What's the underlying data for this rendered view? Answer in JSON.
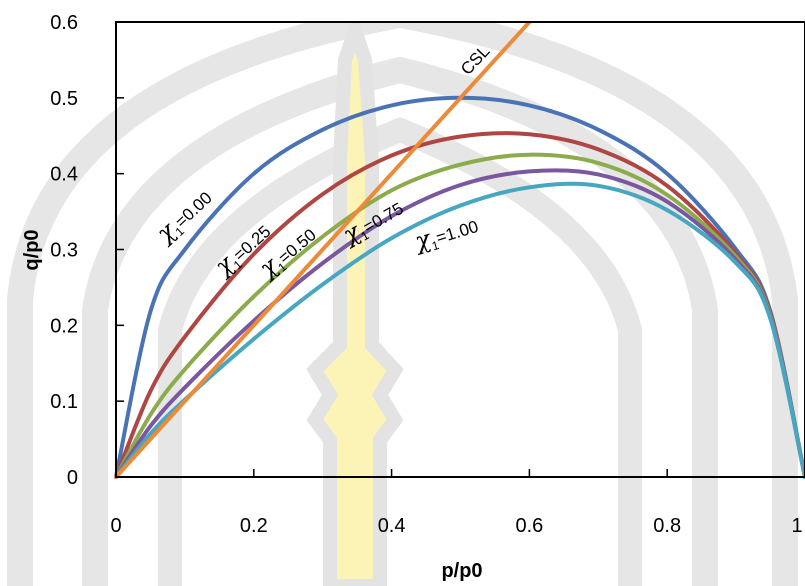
{
  "chart_data": {
    "type": "line",
    "title": "",
    "xlabel": "p/p0",
    "ylabel": "q/p0",
    "xlim": [
      0,
      1
    ],
    "ylim": [
      0,
      0.6
    ],
    "xticks": [
      0,
      0.2,
      0.4,
      0.6,
      0.8,
      1
    ],
    "xtick_labels": [
      "0",
      "0.2",
      "0.4",
      "0.6",
      "0.8",
      "1"
    ],
    "yticks": [
      0,
      0.1,
      0.2,
      0.3,
      0.4,
      0.5,
      0.6
    ],
    "ytick_labels": [
      "0",
      "0.1",
      "0.2",
      "0.3",
      "0.4",
      "0.5",
      "0.6"
    ],
    "grid": false,
    "legend": "none",
    "series": [
      {
        "label": "χ1=0.00",
        "chi": "χ",
        "subscript": "1",
        "value_text": "=0.00",
        "color": "#4a73b5",
        "x": [
          0,
          0.05,
          0.1,
          0.2,
          0.3,
          0.4,
          0.5,
          0.6,
          0.7,
          0.8,
          0.9,
          0.95,
          1
        ],
        "y": [
          0,
          0.218,
          0.3,
          0.4,
          0.458,
          0.49,
          0.5,
          0.49,
          0.458,
          0.4,
          0.3,
          0.218,
          0
        ]
      },
      {
        "label": "χ1=0.25",
        "chi": "χ",
        "subscript": "1",
        "value_text": "=0.25",
        "color": "#b04643",
        "x": [
          0,
          0.05,
          0.1,
          0.2,
          0.3,
          0.4,
          0.5,
          0.6,
          0.7,
          0.8,
          0.9,
          0.95,
          1
        ],
        "y": [
          0,
          0.113,
          0.185,
          0.294,
          0.373,
          0.424,
          0.449,
          0.452,
          0.432,
          0.384,
          0.294,
          0.215,
          0
        ]
      },
      {
        "label": "χ1=0.50",
        "chi": "χ",
        "subscript": "1",
        "value_text": "=0.50",
        "color": "#8bab4c",
        "x": [
          0,
          0.05,
          0.1,
          0.2,
          0.3,
          0.4,
          0.5,
          0.6,
          0.7,
          0.8,
          0.9,
          0.95,
          1
        ],
        "y": [
          0,
          0.082,
          0.142,
          0.238,
          0.317,
          0.378,
          0.412,
          0.425,
          0.414,
          0.372,
          0.29,
          0.212,
          0
        ]
      },
      {
        "label": "χ1=0.75",
        "chi": "χ",
        "subscript": "1",
        "value_text": "=0.75",
        "color": "#7a58a0",
        "x": [
          0,
          0.05,
          0.1,
          0.2,
          0.3,
          0.4,
          0.5,
          0.6,
          0.7,
          0.8,
          0.9,
          0.95,
          1
        ],
        "y": [
          0,
          0.067,
          0.118,
          0.206,
          0.282,
          0.344,
          0.385,
          0.403,
          0.399,
          0.363,
          0.286,
          0.21,
          0
        ]
      },
      {
        "label": "χ1=1.00",
        "chi": "χ",
        "subscript": "1",
        "value_text": "=1.00",
        "color": "#47a6c0",
        "x": [
          0,
          0.05,
          0.1,
          0.2,
          0.3,
          0.4,
          0.5,
          0.6,
          0.7,
          0.8,
          0.9,
          0.95,
          1
        ],
        "y": [
          0,
          0.057,
          0.102,
          0.182,
          0.254,
          0.315,
          0.358,
          0.382,
          0.384,
          0.352,
          0.282,
          0.208,
          0
        ]
      },
      {
        "label": "CSL",
        "color": "#ec8a37",
        "x": [
          0,
          0.6
        ],
        "y": [
          0,
          0.6
        ]
      }
    ]
  }
}
